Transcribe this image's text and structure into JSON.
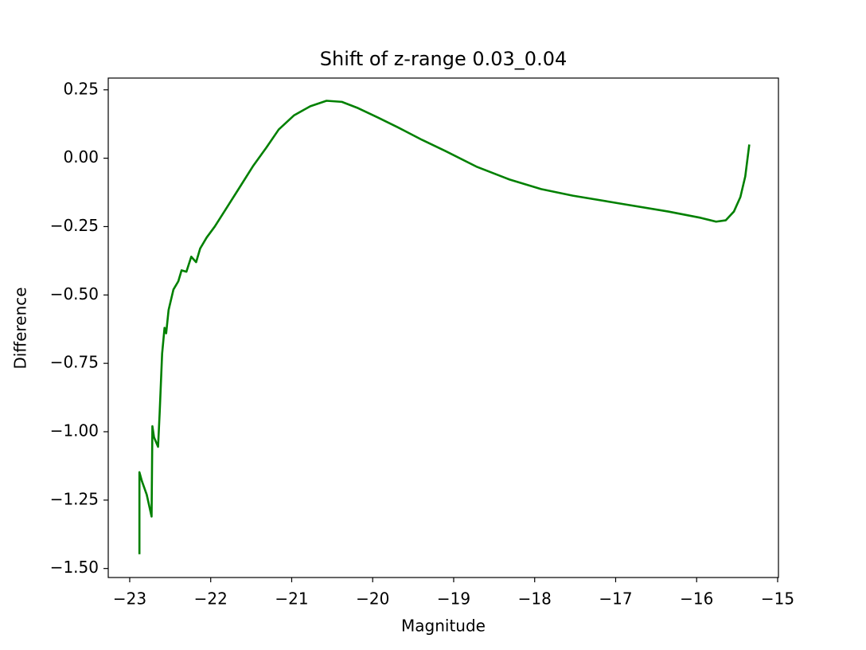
{
  "chart_data": {
    "type": "line",
    "title": "Shift of z-range 0.03_0.04",
    "xlabel": "Magnitude",
    "ylabel": "Difference",
    "xlim": [
      -23.265,
      -14.99
    ],
    "ylim": [
      -1.533,
      0.293
    ],
    "xticks": [
      {
        "value": -23,
        "label": "−23"
      },
      {
        "value": -22,
        "label": "−22"
      },
      {
        "value": -21,
        "label": "−21"
      },
      {
        "value": -20,
        "label": "−20"
      },
      {
        "value": -19,
        "label": "−19"
      },
      {
        "value": -18,
        "label": "−18"
      },
      {
        "value": -17,
        "label": "−17"
      },
      {
        "value": -16,
        "label": "−16"
      },
      {
        "value": -15,
        "label": "−15"
      }
    ],
    "yticks": [
      {
        "value": -1.5,
        "label": "−1.50"
      },
      {
        "value": -1.25,
        "label": "−1.25"
      },
      {
        "value": -1,
        "label": "−1.00"
      },
      {
        "value": -0.75,
        "label": "−0.75"
      },
      {
        "value": -0.5,
        "label": "−0.50"
      },
      {
        "value": -0.25,
        "label": "−0.25"
      },
      {
        "value": 0,
        "label": "0.00"
      },
      0.25
    ],
    "grid": false,
    "x": [
      -22.88,
      -22.88,
      -22.85,
      -22.79,
      -22.73,
      -22.72,
      -22.7,
      -22.65,
      -22.63,
      -22.6,
      -22.57,
      -22.55,
      -22.52,
      -22.46,
      -22.4,
      -22.36,
      -22.3,
      -22.24,
      -22.18,
      -22.13,
      -22.05,
      -21.95,
      -21.8,
      -21.65,
      -21.48,
      -21.31,
      -21.16,
      -20.97,
      -20.77,
      -20.57,
      -20.38,
      -20.18,
      -19.93,
      -19.69,
      -19.39,
      -19.1,
      -18.71,
      -18.31,
      -17.92,
      -17.53,
      -16.94,
      -16.35,
      -15.95,
      -15.76,
      -15.64,
      -15.54,
      -15.46,
      -15.4,
      -15.35
    ],
    "series": [
      {
        "color": "#008000",
        "values": [
          -1.448,
          -1.148,
          -1.18,
          -1.23,
          -1.31,
          -0.98,
          -1.02,
          -1.055,
          -0.93,
          -0.715,
          -0.62,
          -0.64,
          -0.555,
          -0.48,
          -0.45,
          -0.41,
          -0.415,
          -0.36,
          -0.38,
          -0.33,
          -0.29,
          -0.25,
          -0.18,
          -0.11,
          -0.03,
          0.04,
          0.105,
          0.157,
          0.19,
          0.21,
          0.206,
          0.183,
          0.148,
          0.113,
          0.067,
          0.026,
          -0.032,
          -0.078,
          -0.113,
          -0.137,
          -0.166,
          -0.195,
          -0.218,
          -0.232,
          -0.227,
          -0.195,
          -0.142,
          -0.067,
          0.05
        ]
      }
    ]
  }
}
